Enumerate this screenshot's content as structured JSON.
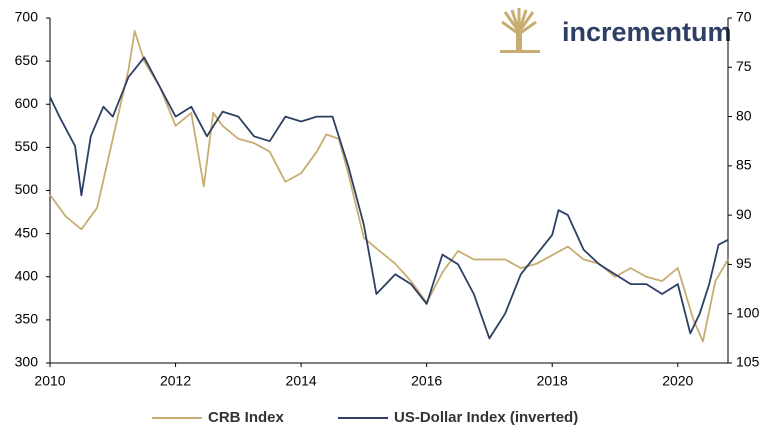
{
  "logo_text": "incrementum",
  "chart_data": {
    "type": "line",
    "xlim": [
      2010,
      2020.8
    ],
    "xticks": [
      2010,
      2012,
      2014,
      2016,
      2018,
      2020
    ],
    "ylim": [
      300,
      700
    ],
    "yticks": [
      300,
      350,
      400,
      450,
      500,
      550,
      600,
      650,
      700
    ],
    "y2lim": [
      70,
      105
    ],
    "y2ticks": [
      70,
      75,
      80,
      85,
      90,
      95,
      100,
      105
    ],
    "y2_inverted": true,
    "series": [
      {
        "name": "CRB Index",
        "color": "#c8ad72",
        "x": [
          2010.0,
          2010.25,
          2010.5,
          2010.75,
          2011.0,
          2011.25,
          2011.35,
          2011.5,
          2011.75,
          2012.0,
          2012.25,
          2012.45,
          2012.6,
          2012.75,
          2013.0,
          2013.25,
          2013.5,
          2013.75,
          2014.0,
          2014.25,
          2014.4,
          2014.6,
          2014.75,
          2015.0,
          2015.25,
          2015.5,
          2015.75,
          2016.0,
          2016.25,
          2016.5,
          2016.75,
          2017.0,
          2017.25,
          2017.5,
          2017.75,
          2018.0,
          2018.25,
          2018.5,
          2018.75,
          2019.0,
          2019.25,
          2019.5,
          2019.75,
          2020.0,
          2020.25,
          2020.4,
          2020.6,
          2020.8
        ],
        "values": [
          495,
          470,
          455,
          480,
          560,
          640,
          685,
          650,
          620,
          575,
          590,
          505,
          590,
          575,
          560,
          555,
          545,
          510,
          520,
          545,
          565,
          560,
          520,
          445,
          430,
          415,
          395,
          370,
          405,
          430,
          420,
          420,
          420,
          410,
          415,
          425,
          435,
          420,
          415,
          400,
          410,
          400,
          395,
          410,
          350,
          325,
          395,
          420
        ]
      },
      {
        "name": "US-Dollar Index (inverted)",
        "color": "#2e3f66",
        "axis": "y2",
        "x": [
          2010.0,
          2010.15,
          2010.4,
          2010.5,
          2010.65,
          2010.85,
          2011.0,
          2011.25,
          2011.5,
          2011.75,
          2012.0,
          2012.25,
          2012.5,
          2012.75,
          2013.0,
          2013.25,
          2013.5,
          2013.75,
          2014.0,
          2014.25,
          2014.5,
          2014.75,
          2015.0,
          2015.2,
          2015.5,
          2015.75,
          2016.0,
          2016.25,
          2016.5,
          2016.75,
          2017.0,
          2017.25,
          2017.5,
          2017.75,
          2018.0,
          2018.1,
          2018.25,
          2018.5,
          2018.75,
          2019.0,
          2019.25,
          2019.5,
          2019.75,
          2020.0,
          2020.2,
          2020.35,
          2020.5,
          2020.65,
          2020.8
        ],
        "values": [
          78,
          80,
          83,
          88,
          82,
          79,
          80,
          76,
          74,
          77,
          80,
          79,
          82,
          79.5,
          80,
          82,
          82.5,
          80,
          80.5,
          80,
          80,
          85,
          91,
          98,
          96,
          97,
          99,
          94,
          95,
          98,
          102.5,
          100,
          96,
          94,
          92,
          89.5,
          90,
          93.5,
          95,
          96,
          97,
          97,
          98,
          97,
          102,
          100,
          97,
          93,
          92.5
        ]
      }
    ]
  }
}
